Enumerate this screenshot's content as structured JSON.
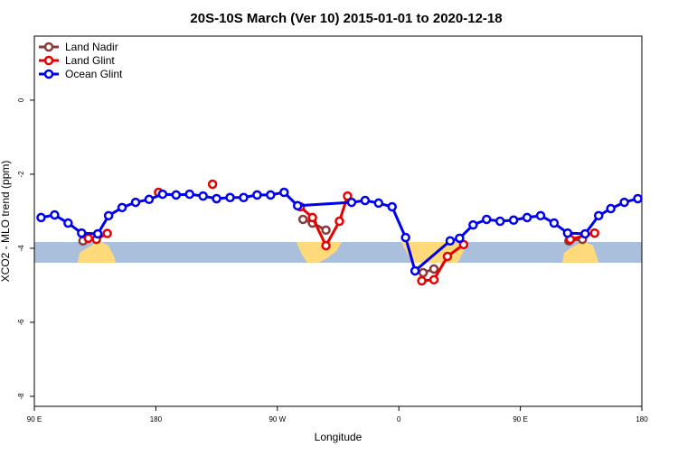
{
  "chart_data": {
    "type": "line",
    "title": "20S-10S March (Ver 10)   2015-01-01 to 2020-12-18",
    "xlabel": "Longitude",
    "ylabel": "XCO2 - MLO trend (ppm)",
    "xlim": [
      90,
      540
    ],
    "ylim": [
      -8.27,
      1.73
    ],
    "xticks": [
      {
        "value": 90,
        "label": "90 E"
      },
      180,
      {
        "value": 270,
        "label": "90 W"
      },
      {
        "value": 360,
        "label": "0"
      },
      {
        "value": 450,
        "label": "90 E"
      },
      {
        "value": 540,
        "label": "180"
      }
    ],
    "yticks": [
      -8,
      -6,
      -4,
      -2,
      0
    ],
    "legend": "top-left",
    "series": [
      {
        "name": "Land Nadir",
        "color": "#8b3a3a",
        "x": [
          126,
          null,
          289,
          296,
          306,
          null,
          378,
          386,
          null,
          486,
          496
        ],
        "values": [
          -3.8,
          null,
          -3.22,
          -3.32,
          -3.51,
          null,
          -4.66,
          -4.56,
          null,
          -3.8,
          -3.76
        ]
      },
      {
        "name": "Land Glint",
        "color": "#e80000",
        "x": [
          130,
          136,
          144,
          null,
          182,
          null,
          222,
          null,
          287,
          296,
          306,
          316,
          322,
          null,
          377,
          386,
          396,
          408,
          null,
          487,
          505
        ],
        "values": [
          -3.73,
          -3.76,
          -3.6,
          null,
          -2.49,
          null,
          -2.27,
          null,
          -2.88,
          -3.17,
          -3.93,
          -3.27,
          -2.59,
          null,
          -4.88,
          -4.85,
          -4.22,
          -3.9,
          null,
          -3.76,
          -3.59
        ]
      },
      {
        "name": "Ocean Glint",
        "color": "#0000f0",
        "x": [
          95,
          105,
          115,
          125,
          137,
          145,
          155,
          165,
          175,
          185,
          195,
          205,
          215,
          225,
          235,
          245,
          255,
          265,
          275,
          285,
          325,
          335,
          345,
          355,
          365,
          372,
          398,
          405,
          415,
          425,
          435,
          445,
          455,
          465,
          475,
          485,
          498,
          508,
          517,
          527,
          537
        ],
        "values": [
          -3.17,
          -3.1,
          -3.32,
          -3.59,
          -3.61,
          -3.12,
          -2.9,
          -2.76,
          -2.68,
          -2.54,
          -2.56,
          -2.54,
          -2.59,
          -2.66,
          -2.63,
          -2.63,
          -2.56,
          -2.56,
          -2.49,
          -2.85,
          -2.76,
          -2.71,
          -2.78,
          -2.88,
          -3.71,
          -4.61,
          -3.8,
          -3.73,
          -3.37,
          -3.22,
          -3.27,
          -3.24,
          -3.17,
          -3.12,
          -3.32,
          -3.59,
          -3.61,
          -3.12,
          -2.93,
          -2.76,
          -2.66
        ]
      }
    ]
  }
}
